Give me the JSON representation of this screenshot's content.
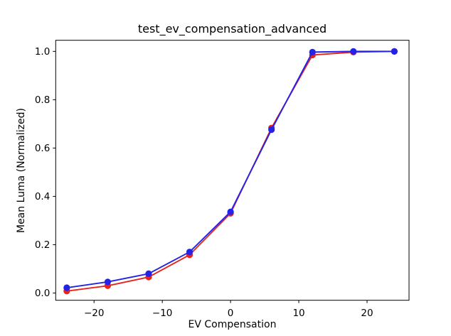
{
  "figure": {
    "background": "#ffffff",
    "spine_color": "#000000"
  },
  "chart_data": {
    "type": "line",
    "title": "test_ev_compensation_advanced",
    "xlabel": "EV Compensation",
    "ylabel": "Mean Luma (Normalized)",
    "x": [
      -24,
      -18,
      -12,
      -6,
      0,
      6,
      12,
      18,
      24
    ],
    "series": [
      {
        "name": "red-series",
        "color": "#e8231d",
        "marker": "circle",
        "values": [
          0.008,
          0.03,
          0.066,
          0.158,
          0.33,
          0.683,
          0.985,
          0.997,
          1.0
        ]
      },
      {
        "name": "blue-series",
        "color": "#2323e8",
        "marker": "circle",
        "values": [
          0.022,
          0.046,
          0.08,
          0.17,
          0.336,
          0.676,
          0.997,
          1.0,
          1.0
        ]
      }
    ],
    "x_ticks": {
      "values": [
        -20,
        -10,
        0,
        10,
        20
      ],
      "labels": [
        "−20",
        "−10",
        "0",
        "10",
        "20"
      ]
    },
    "y_ticks": {
      "values": [
        0.0,
        0.2,
        0.4,
        0.6,
        0.8,
        1.0
      ],
      "labels": [
        "0.0",
        "0.2",
        "0.4",
        "0.6",
        "0.8",
        "1.0"
      ]
    },
    "xlim": [
      -25.62,
      26.15
    ],
    "ylim": [
      -0.03,
      1.046
    ],
    "grid": false,
    "legend": "none"
  }
}
